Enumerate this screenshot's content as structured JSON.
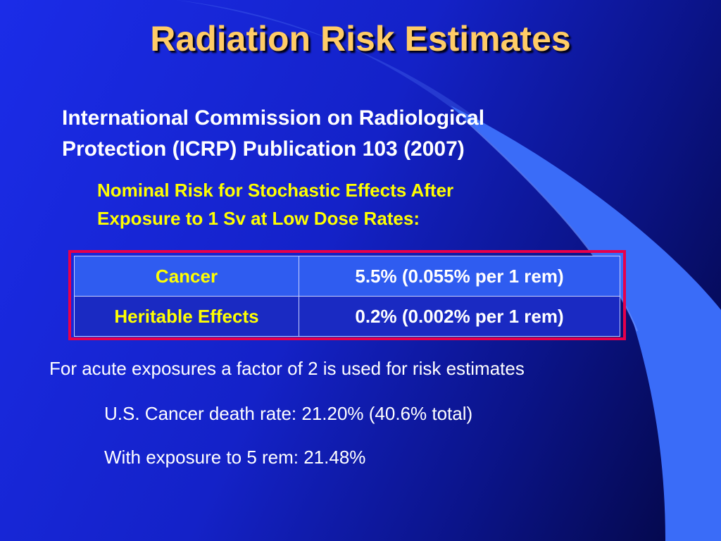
{
  "slide": {
    "title": "Radiation Risk Estimates",
    "subtitle_line1": "International Commission on Radiological",
    "subtitle_line2": "Protection (ICRP) Publication 103 (2007)",
    "subheading_line1": "Nominal Risk for Stochastic Effects After",
    "subheading_line2": "Exposure to 1 Sv at Low Dose Rates:",
    "table": {
      "rows": [
        {
          "label": "Cancer",
          "value": "5.5%  (0.055% per 1 rem)"
        },
        {
          "label": "Heritable Effects",
          "value": "0.2%  (0.002% per 1 rem)"
        }
      ]
    },
    "note": "For acute exposures a factor of 2 is used for risk estimates",
    "fact1": "U.S. Cancer death rate:   21.20% (40.6% total)",
    "fact2": "With exposure to 5 rem:   21.48%"
  },
  "colors": {
    "title": "#ffcc66",
    "subheading": "#ffff00",
    "table_border": "#e8004a",
    "background_start": "#1b2ce8",
    "background_end": "#030640"
  }
}
